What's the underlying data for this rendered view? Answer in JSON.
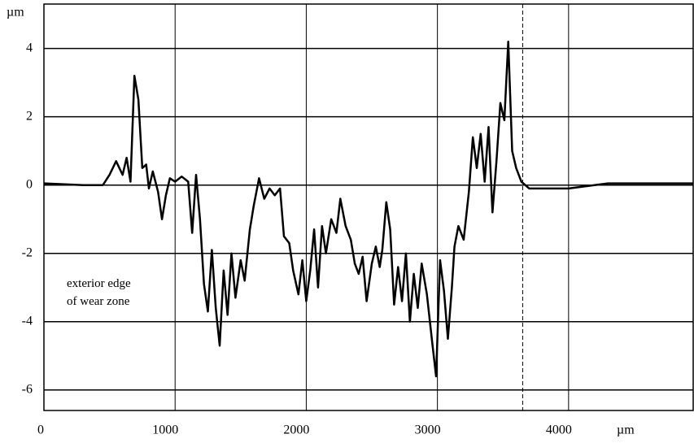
{
  "chart_data": {
    "type": "line",
    "y_unit": "µm",
    "x_unit": "µm",
    "annotation": "exterior edge of wear zone",
    "marker_x": 3650,
    "xlim": [
      0,
      4950
    ],
    "ylim": [
      -6.6,
      5.3
    ],
    "xticks": [
      0,
      1000,
      2000,
      3000,
      4000
    ],
    "yticks": [
      -6,
      -4,
      -2,
      0,
      2,
      4
    ],
    "grid": true,
    "series": [
      {
        "color": "#000000",
        "x": [
          0,
          300,
          450,
          500,
          550,
          600,
          630,
          660,
          690,
          720,
          750,
          780,
          800,
          830,
          870,
          900,
          930,
          960,
          1000,
          1050,
          1100,
          1130,
          1160,
          1190,
          1220,
          1250,
          1280,
          1310,
          1340,
          1370,
          1400,
          1430,
          1460,
          1500,
          1530,
          1570,
          1600,
          1640,
          1680,
          1720,
          1760,
          1800,
          1830,
          1870,
          1900,
          1940,
          1970,
          2000,
          2030,
          2060,
          2090,
          2120,
          2150,
          2190,
          2230,
          2260,
          2300,
          2340,
          2370,
          2400,
          2430,
          2460,
          2500,
          2530,
          2560,
          2580,
          2610,
          2640,
          2670,
          2700,
          2730,
          2760,
          2790,
          2820,
          2850,
          2880,
          2920,
          2960,
          2990,
          3020,
          3050,
          3080,
          3110,
          3130,
          3160,
          3200,
          3240,
          3270,
          3300,
          3330,
          3360,
          3390,
          3420,
          3450,
          3480,
          3510,
          3540,
          3570,
          3600,
          3640,
          3700,
          4000,
          4300,
          4950
        ],
        "values": [
          0.05,
          0.0,
          0.0,
          0.3,
          0.7,
          0.3,
          0.8,
          0.1,
          3.2,
          2.5,
          0.5,
          0.6,
          -0.1,
          0.4,
          -0.2,
          -1.0,
          -0.3,
          0.2,
          0.1,
          0.25,
          0.1,
          -1.4,
          0.3,
          -1.0,
          -2.9,
          -3.7,
          -1.9,
          -3.6,
          -4.7,
          -2.5,
          -3.8,
          -2.0,
          -3.3,
          -2.2,
          -2.8,
          -1.3,
          -0.6,
          0.2,
          -0.4,
          -0.1,
          -0.3,
          -0.1,
          -1.5,
          -1.7,
          -2.5,
          -3.2,
          -2.2,
          -3.4,
          -2.5,
          -1.3,
          -3.0,
          -1.2,
          -2.0,
          -1.0,
          -1.4,
          -0.4,
          -1.2,
          -1.6,
          -2.3,
          -2.6,
          -2.1,
          -3.4,
          -2.3,
          -1.8,
          -2.4,
          -1.9,
          -0.5,
          -1.3,
          -3.5,
          -2.4,
          -3.4,
          -2.0,
          -4.0,
          -2.6,
          -3.6,
          -2.3,
          -3.2,
          -4.6,
          -5.6,
          -2.2,
          -3.1,
          -4.5,
          -3.0,
          -1.8,
          -1.2,
          -1.6,
          -0.2,
          1.4,
          0.5,
          1.5,
          0.1,
          1.7,
          -0.8,
          0.7,
          2.4,
          1.9,
          4.2,
          1.0,
          0.5,
          0.1,
          -0.1,
          -0.1,
          0.05,
          0.05
        ]
      }
    ]
  }
}
